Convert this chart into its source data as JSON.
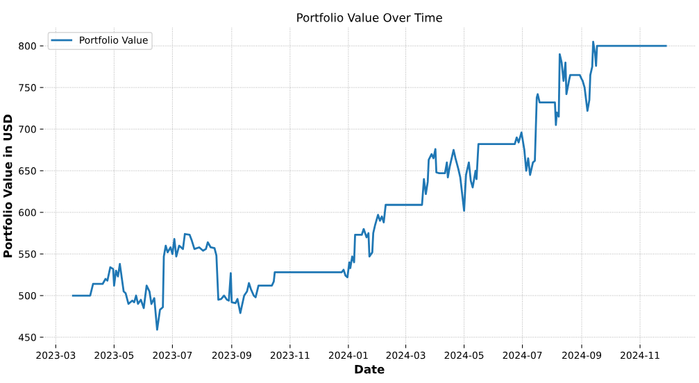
{
  "chart_data": {
    "type": "line",
    "title": "Portfolio Value Over Time",
    "xlabel": "Date",
    "ylabel": "Portfolio Value in USD",
    "xlim": [
      "2023-02-16",
      "2024-12-29"
    ],
    "ylim": [
      441,
      822
    ],
    "xticks": [
      {
        "value": "2023-03-01",
        "label": "2023-03"
      },
      {
        "value": "2023-05-01",
        "label": "2023-05"
      },
      {
        "value": "2023-07-01",
        "label": "2023-07"
      },
      {
        "value": "2023-09-01",
        "label": "2023-09"
      },
      {
        "value": "2023-11-01",
        "label": "2023-11"
      },
      {
        "value": "2024-01-01",
        "label": "2024-01"
      },
      {
        "value": "2024-03-01",
        "label": "2024-03"
      },
      {
        "value": "2024-05-01",
        "label": "2024-05"
      },
      {
        "value": "2024-07-01",
        "label": "2024-07"
      },
      {
        "value": "2024-09-01",
        "label": "2024-09"
      },
      {
        "value": "2024-11-01",
        "label": "2024-11"
      }
    ],
    "yticks": [
      450,
      500,
      550,
      600,
      650,
      700,
      750,
      800
    ],
    "grid": true,
    "legend": "top left",
    "marker": "none",
    "line_style": "solid",
    "x": [
      "2023-03-19",
      "2023-04-06",
      "2023-04-09",
      "2023-04-19",
      "2023-04-22",
      "2023-04-24",
      "2023-04-27",
      "2023-04-30",
      "2023-05-01",
      "2023-05-03",
      "2023-05-05",
      "2023-05-07",
      "2023-05-11",
      "2023-05-13",
      "2023-05-16",
      "2023-05-20",
      "2023-05-22",
      "2023-05-24",
      "2023-05-26",
      "2023-05-29",
      "2023-06-01",
      "2023-06-04",
      "2023-06-07",
      "2023-06-09",
      "2023-06-12",
      "2023-06-15",
      "2023-06-18",
      "2023-06-21",
      "2023-06-22",
      "2023-06-24",
      "2023-06-26",
      "2023-06-29",
      "2023-07-01",
      "2023-07-03",
      "2023-07-05",
      "2023-07-08",
      "2023-07-12",
      "2023-07-14",
      "2023-07-19",
      "2023-07-21",
      "2023-07-24",
      "2023-07-29",
      "2023-08-02",
      "2023-08-05",
      "2023-08-07",
      "2023-08-10",
      "2023-08-14",
      "2023-08-16",
      "2023-08-18",
      "2023-08-21",
      "2023-08-24",
      "2023-08-27",
      "2023-08-29",
      "2023-08-31",
      "2023-09-01",
      "2023-09-05",
      "2023-09-07",
      "2023-09-10",
      "2023-09-14",
      "2023-09-17",
      "2023-09-19",
      "2023-09-21",
      "2023-09-24",
      "2023-09-26",
      "2023-09-29",
      "2023-10-13",
      "2023-10-15",
      "2023-10-16",
      "2023-12-25",
      "2023-12-27",
      "2023-12-29",
      "2023-12-31",
      "2024-01-02",
      "2024-01-03",
      "2024-01-05",
      "2024-01-07",
      "2024-01-08",
      "2024-01-15",
      "2024-01-17",
      "2024-01-20",
      "2024-01-22",
      "2024-01-23",
      "2024-01-26",
      "2024-01-27",
      "2024-01-29",
      "2024-02-01",
      "2024-02-03",
      "2024-02-05",
      "2024-02-07",
      "2024-02-09",
      "2024-03-18",
      "2024-03-20",
      "2024-03-22",
      "2024-03-24",
      "2024-03-25",
      "2024-03-28",
      "2024-03-30",
      "2024-04-01",
      "2024-04-02",
      "2024-04-05",
      "2024-04-11",
      "2024-04-13",
      "2024-04-14",
      "2024-04-16",
      "2024-04-20",
      "2024-04-22",
      "2024-04-25",
      "2024-04-27",
      "2024-05-01",
      "2024-05-03",
      "2024-05-06",
      "2024-05-08",
      "2024-05-10",
      "2024-05-13",
      "2024-05-14",
      "2024-05-16",
      "2024-06-23",
      "2024-06-25",
      "2024-06-27",
      "2024-06-30",
      "2024-07-03",
      "2024-07-05",
      "2024-07-07",
      "2024-07-09",
      "2024-07-12",
      "2024-07-14",
      "2024-07-15",
      "2024-07-16",
      "2024-07-17",
      "2024-07-19",
      "2024-08-04",
      "2024-08-05",
      "2024-08-06",
      "2024-08-08",
      "2024-08-09",
      "2024-08-11",
      "2024-08-13",
      "2024-08-15",
      "2024-08-16",
      "2024-08-19",
      "2024-08-20",
      "2024-08-30",
      "2024-09-01",
      "2024-09-02",
      "2024-09-04",
      "2024-09-07",
      "2024-09-09",
      "2024-09-10",
      "2024-09-12",
      "2024-09-13",
      "2024-09-15",
      "2024-09-16",
      "2024-09-17",
      "2024-11-28"
    ],
    "series": [
      {
        "name": "Portfolio Value",
        "color": "#1f77b4",
        "values": [
          500,
          500,
          514,
          514,
          520,
          518,
          534,
          532,
          512,
          530,
          523,
          538,
          505,
          503,
          490,
          494,
          492,
          500,
          490,
          495,
          485,
          512,
          505,
          490,
          497,
          459,
          483,
          486,
          547,
          560,
          552,
          558,
          550,
          568,
          547,
          560,
          556,
          574,
          573,
          567,
          556,
          558,
          554,
          556,
          564,
          558,
          557,
          548,
          495,
          496,
          500,
          495,
          494,
          527,
          492,
          491,
          496,
          479,
          500,
          505,
          515,
          508,
          500,
          498,
          512,
          512,
          517,
          528,
          528,
          531,
          524,
          522,
          540,
          533,
          547,
          540,
          573,
          573,
          580,
          570,
          575,
          547,
          552,
          575,
          585,
          597,
          590,
          595,
          588,
          609,
          609,
          640,
          622,
          637,
          663,
          670,
          665,
          676,
          648,
          647,
          647,
          660,
          642,
          655,
          675,
          665,
          652,
          642,
          602,
          645,
          660,
          638,
          630,
          650,
          640,
          682,
          682,
          690,
          684,
          696,
          675,
          650,
          665,
          645,
          660,
          662,
          700,
          738,
          742,
          732,
          732,
          705,
          720,
          715,
          790,
          780,
          758,
          780,
          742,
          760,
          765,
          765,
          760,
          758,
          750,
          722,
          735,
          765,
          775,
          805,
          790,
          776,
          800,
          800
        ]
      }
    ]
  }
}
